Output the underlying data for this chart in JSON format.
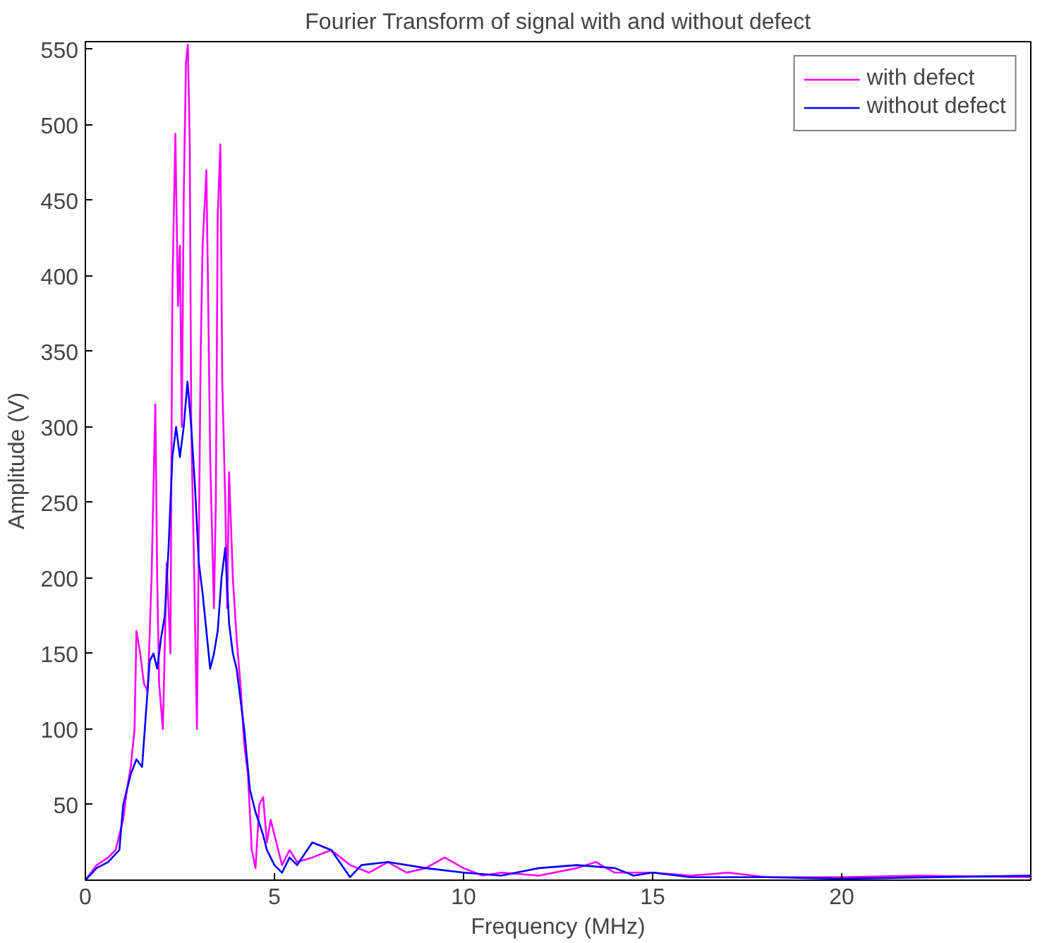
{
  "chart_data": {
    "type": "line",
    "title": "Fourier Transform of signal with and without defect",
    "xlabel": "Frequency (MHz)",
    "ylabel": "Amplitude (V)",
    "xlim": [
      0,
      25
    ],
    "ylim": [
      0,
      555
    ],
    "xticks": [
      0,
      5,
      10,
      15,
      20
    ],
    "yticks": [
      50,
      100,
      150,
      200,
      250,
      300,
      350,
      400,
      450,
      500,
      550
    ],
    "grid": false,
    "legend": "top right",
    "series": [
      {
        "name": "with defect",
        "color": "#ff00ff",
        "x": [
          0,
          0.3,
          0.6,
          0.8,
          1.0,
          1.1,
          1.2,
          1.3,
          1.35,
          1.45,
          1.55,
          1.65,
          1.75,
          1.85,
          1.9,
          1.95,
          2.05,
          2.15,
          2.25,
          2.3,
          2.38,
          2.45,
          2.5,
          2.55,
          2.6,
          2.66,
          2.71,
          2.76,
          2.8,
          2.88,
          2.95,
          3.05,
          3.1,
          3.2,
          3.25,
          3.3,
          3.4,
          3.45,
          3.5,
          3.57,
          3.62,
          3.7,
          3.75,
          3.8,
          3.9,
          4.0,
          4.1,
          4.2,
          4.3,
          4.4,
          4.5,
          4.6,
          4.7,
          4.8,
          4.9,
          5.0,
          5.2,
          5.4,
          5.6,
          6.0,
          6.5,
          7.0,
          7.5,
          8.0,
          8.5,
          9.0,
          9.5,
          10.0,
          10.5,
          11,
          12,
          13,
          13.5,
          14,
          15,
          16,
          17,
          18,
          20,
          22,
          25
        ],
        "values": [
          0,
          10,
          15,
          20,
          40,
          60,
          75,
          100,
          165,
          150,
          130,
          125,
          200,
          315,
          200,
          130,
          100,
          210,
          150,
          390,
          494,
          380,
          420,
          300,
          450,
          541,
          553,
          487,
          300,
          200,
          100,
          350,
          420,
          470,
          380,
          280,
          180,
          250,
          440,
          487,
          330,
          250,
          180,
          270,
          200,
          160,
          130,
          90,
          70,
          20,
          8,
          50,
          55,
          25,
          40,
          30,
          10,
          20,
          12,
          15,
          20,
          10,
          5,
          12,
          5,
          8,
          15,
          8,
          3,
          5,
          3,
          8,
          12,
          5,
          5,
          3,
          5,
          2,
          2,
          3,
          2
        ]
      },
      {
        "name": "without defect",
        "color": "#0000ff",
        "x": [
          0,
          0.3,
          0.6,
          0.9,
          1.0,
          1.2,
          1.35,
          1.5,
          1.6,
          1.7,
          1.8,
          1.9,
          2.0,
          2.1,
          2.2,
          2.3,
          2.4,
          2.5,
          2.6,
          2.7,
          2.8,
          2.9,
          3.0,
          3.1,
          3.2,
          3.3,
          3.4,
          3.5,
          3.6,
          3.7,
          3.8,
          3.9,
          4.0,
          4.1,
          4.2,
          4.35,
          4.5,
          4.7,
          4.8,
          5.0,
          5.2,
          5.4,
          5.6,
          6,
          6.5,
          7.0,
          7.3,
          8,
          9,
          10,
          11,
          12,
          13,
          14,
          14.5,
          15,
          16,
          18,
          20,
          25
        ],
        "values": [
          0,
          8,
          12,
          20,
          50,
          70,
          80,
          75,
          110,
          145,
          150,
          140,
          160,
          175,
          220,
          280,
          300,
          280,
          300,
          330,
          300,
          260,
          210,
          190,
          165,
          140,
          150,
          165,
          200,
          220,
          170,
          150,
          140,
          120,
          100,
          60,
          45,
          30,
          20,
          10,
          5,
          15,
          10,
          25,
          20,
          2,
          10,
          12,
          8,
          5,
          3,
          8,
          10,
          8,
          3,
          5,
          2,
          2,
          1,
          3
        ]
      }
    ]
  }
}
